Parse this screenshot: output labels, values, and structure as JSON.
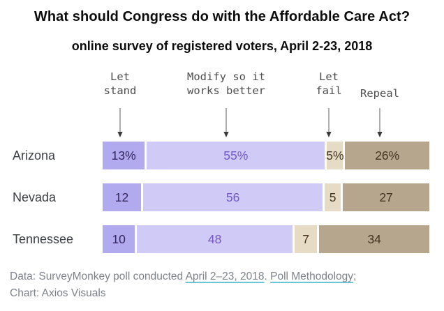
{
  "title": "What should Congress do with the Affordable Care Act?",
  "subtitle": "online survey of registered voters, April 2-23, 2018",
  "chart_data": {
    "type": "bar",
    "stacked": true,
    "orientation": "horizontal",
    "title": "What should Congress do with the Affordable Care Act?",
    "subtitle": "online survey of registered voters, April 2-23, 2018",
    "unit": "percent",
    "grid": false,
    "legend_position": "top",
    "categories": [
      "Arizona",
      "Nevada",
      "Tennessee"
    ],
    "series": [
      {
        "name": "Let stand",
        "values": [
          13,
          12,
          10
        ],
        "color": "#b2aaef",
        "text_color": "#33265e"
      },
      {
        "name": "Modify so it works better",
        "values": [
          55,
          56,
          48
        ],
        "color": "#cfcbf6",
        "text_color": "#7456c8"
      },
      {
        "name": "Let fail",
        "values": [
          5,
          5,
          7
        ],
        "color": "#e6dcc5",
        "text_color": "#443320"
      },
      {
        "name": "Repeal",
        "values": [
          26,
          27,
          34
        ],
        "color": "#b6a68e",
        "text_color": "#443320"
      }
    ],
    "header_lines": [
      [
        "Let",
        "stand"
      ],
      [
        "Modify so it",
        "works better"
      ],
      [
        "Let",
        "fail"
      ],
      [
        "Repeal"
      ]
    ],
    "value_labels": [
      [
        "13%",
        "55%",
        "5%",
        "26%"
      ],
      [
        "12",
        "56",
        "5",
        "27"
      ],
      [
        "10",
        "48",
        "7",
        "34"
      ]
    ],
    "arrow_color": "#8a8a8a",
    "arrowhead_color": "#3a3a3a"
  },
  "footer": {
    "line1_prefix": "Data: SurveyMonkey poll conducted ",
    "link1": "April 2–23, 2018",
    "separator": ". ",
    "link2": "Poll Methodology",
    "suffix": ";",
    "line2": "Chart: Axios Visuals"
  }
}
